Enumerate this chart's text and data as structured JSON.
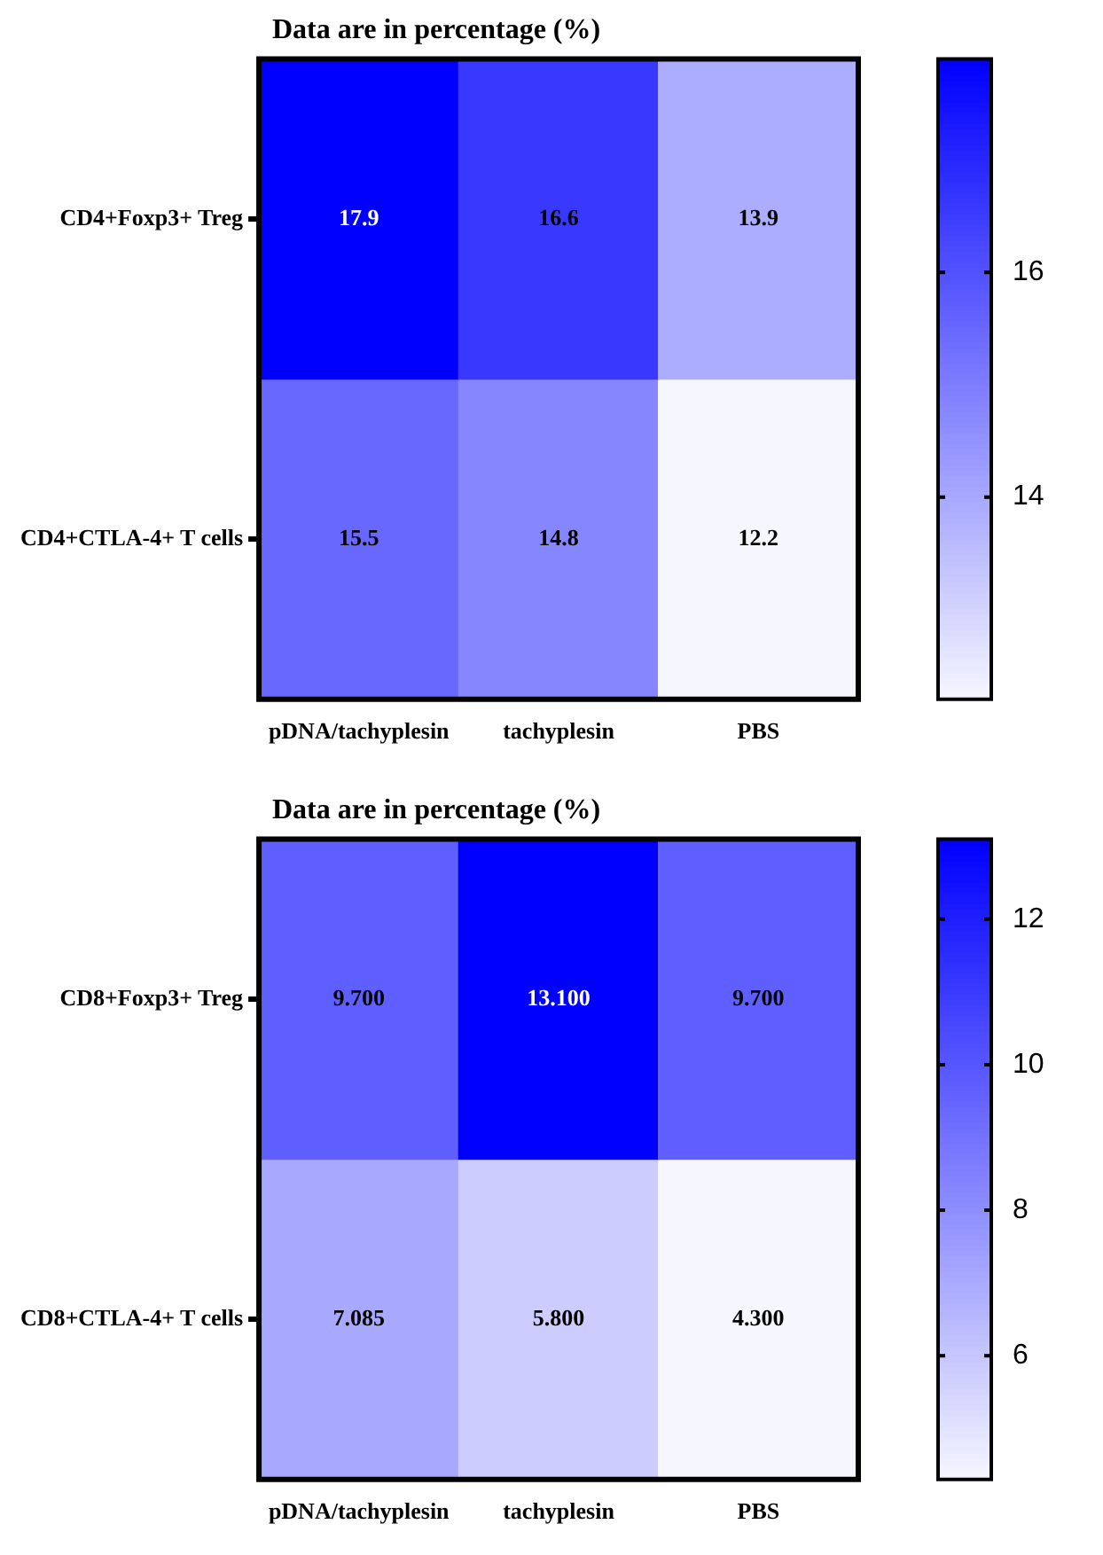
{
  "chart_data": [
    {
      "type": "heatmap",
      "title": "Data are in percentage (%)",
      "categories": [
        "pDNA/tachyplesin",
        "tachyplesin",
        "PBS"
      ],
      "y_categories": [
        "CD4+Foxp3+ Treg",
        "CD4+CTLA-4+ T cells"
      ],
      "cells": [
        [
          17.9,
          16.6,
          13.9
        ],
        [
          15.5,
          14.8,
          12.2
        ]
      ],
      "data_labels": true,
      "clim": [
        12.2,
        17.9
      ],
      "cticks": [
        14,
        16
      ]
    },
    {
      "type": "heatmap",
      "title": "Data are in percentage (%)",
      "categories": [
        "pDNA/tachyplesin",
        "tachyplesin",
        "PBS"
      ],
      "y_categories": [
        "CD8+Foxp3+ Treg",
        "CD8+CTLA-4+ T cells"
      ],
      "cells": [
        [
          9.7,
          13.1,
          9.7
        ],
        [
          7.085,
          5.8,
          4.3
        ]
      ],
      "cell_labels": [
        [
          "9.700",
          "13.100",
          "9.700"
        ],
        [
          "7.085",
          "5.800",
          "4.300"
        ]
      ],
      "clim": [
        4.3,
        13.1
      ],
      "cticks": [
        6,
        8,
        10,
        12
      ]
    }
  ]
}
